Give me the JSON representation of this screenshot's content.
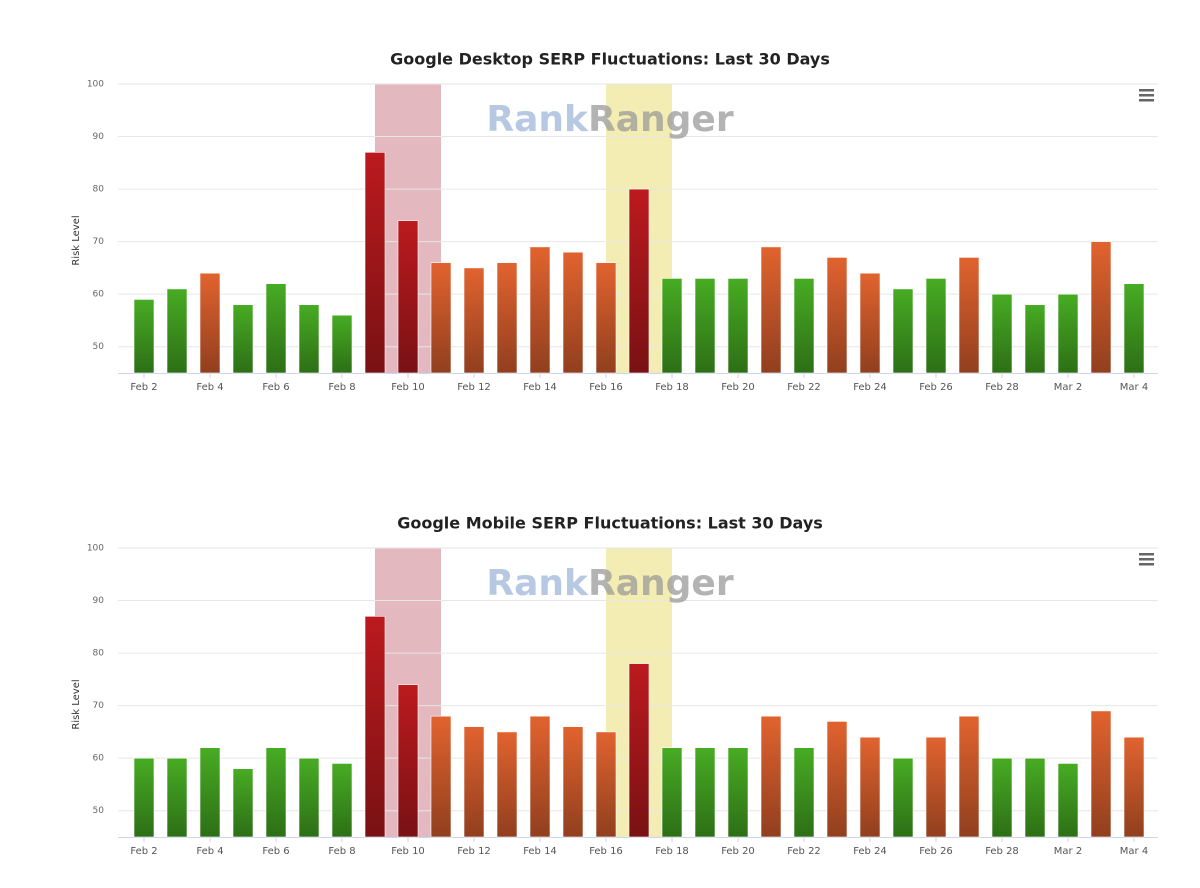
{
  "chart_data": [
    {
      "type": "bar",
      "title": "Google Desktop SERP Fluctuations: Last 30 Days",
      "watermark": [
        "Rank",
        "Ranger"
      ],
      "y_label": "Risk Level",
      "categories": [
        "Feb 2",
        null,
        "Feb 4",
        null,
        "Feb 6",
        null,
        "Feb 8",
        null,
        "Feb 10",
        null,
        "Feb 12",
        null,
        "Feb 14",
        null,
        "Feb 16",
        null,
        "Feb 18",
        null,
        "Feb 20",
        null,
        "Feb 22",
        null,
        "Feb 24",
        null,
        "Feb 26",
        null,
        "Feb 28",
        null,
        "Mar 2",
        null,
        "Mar 4"
      ],
      "values": [
        59,
        61,
        64,
        58,
        62,
        58,
        56,
        87,
        74,
        66,
        65,
        66,
        69,
        68,
        66,
        80,
        63,
        63,
        63,
        69,
        63,
        67,
        64,
        61,
        63,
        67,
        60,
        58,
        60,
        70,
        62
      ],
      "colors": [
        "#3f9a1f",
        "#3f9a1f",
        "#c9582a",
        "#3f9a1f",
        "#3f9a1f",
        "#3f9a1f",
        "#3f9a1f",
        "#a8171b",
        "#a8171b",
        "#c9582a",
        "#c9582a",
        "#c9582a",
        "#c9582a",
        "#c9582a",
        "#c9582a",
        "#a8171b",
        "#3f9a1f",
        "#3f9a1f",
        "#3f9a1f",
        "#c9582a",
        "#3f9a1f",
        "#c9582a",
        "#c9582a",
        "#3f9a1f",
        "#3f9a1f",
        "#c9582a",
        "#3f9a1f",
        "#3f9a1f",
        "#3f9a1f",
        "#c9582a",
        "#3f9a1f"
      ],
      "plot_bands": [
        {
          "from": 7,
          "to": 9,
          "color": "#e4b8bf"
        },
        {
          "from": 14,
          "to": 16,
          "color": "#f3edb4"
        }
      ],
      "ylim": [
        45,
        100
      ],
      "yticks": [
        50,
        60,
        70,
        80,
        90,
        100
      ],
      "grid": true
    },
    {
      "type": "bar",
      "title": "Google Mobile SERP Fluctuations: Last 30 Days",
      "watermark": [
        "Rank",
        "Ranger"
      ],
      "y_label": "Risk Level",
      "categories": [
        "Feb 2",
        null,
        "Feb 4",
        null,
        "Feb 6",
        null,
        "Feb 8",
        null,
        "Feb 10",
        null,
        "Feb 12",
        null,
        "Feb 14",
        null,
        "Feb 16",
        null,
        "Feb 18",
        null,
        "Feb 20",
        null,
        "Feb 22",
        null,
        "Feb 24",
        null,
        "Feb 26",
        null,
        "Feb 28",
        null,
        "Mar 2",
        null,
        "Mar 4"
      ],
      "values": [
        60,
        60,
        62,
        58,
        62,
        60,
        59,
        87,
        74,
        68,
        66,
        65,
        68,
        66,
        65,
        78,
        62,
        62,
        62,
        68,
        62,
        67,
        64,
        60,
        64,
        68,
        60,
        60,
        59,
        69,
        64
      ],
      "colors": [
        "#3f9a1f",
        "#3f9a1f",
        "#3f9a1f",
        "#3f9a1f",
        "#3f9a1f",
        "#3f9a1f",
        "#3f9a1f",
        "#a8171b",
        "#a8171b",
        "#c9582a",
        "#c9582a",
        "#c9582a",
        "#c9582a",
        "#c9582a",
        "#c9582a",
        "#a8171b",
        "#3f9a1f",
        "#3f9a1f",
        "#3f9a1f",
        "#c9582a",
        "#3f9a1f",
        "#c9582a",
        "#c9582a",
        "#3f9a1f",
        "#c9582a",
        "#c9582a",
        "#3f9a1f",
        "#3f9a1f",
        "#3f9a1f",
        "#c9582a",
        "#c9582a"
      ],
      "plot_bands": [
        {
          "from": 7,
          "to": 9,
          "color": "#e4b8bf"
        },
        {
          "from": 14,
          "to": 16,
          "color": "#f3edb4"
        }
      ],
      "ylim": [
        45,
        100
      ],
      "yticks": [
        50,
        60,
        70,
        80,
        90,
        100
      ],
      "grid": true
    }
  ]
}
